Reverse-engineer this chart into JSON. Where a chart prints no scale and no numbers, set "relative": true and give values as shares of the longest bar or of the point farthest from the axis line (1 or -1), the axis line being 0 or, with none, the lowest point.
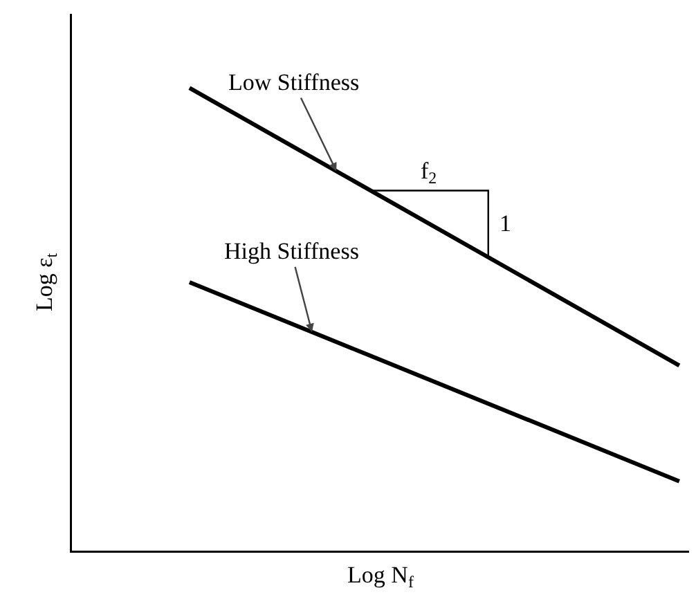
{
  "chart_data": {
    "type": "line",
    "relative": true,
    "xlabel": "Log N$_{f}$",
    "ylabel": "Log ε$_{t}$",
    "categories": [
      null,
      null
    ],
    "series": [
      {
        "name": "Low Stiffness",
        "color": "#000000",
        "values": [
          1,
          0.4
        ]
      },
      {
        "name": "High Stiffness",
        "color": "#000000",
        "values": [
          0.58,
          0.15
        ]
      }
    ],
    "annotations": [
      "f$_{2}$",
      "1"
    ],
    "legend": false,
    "marker": "none",
    "line_style": "solid"
  }
}
